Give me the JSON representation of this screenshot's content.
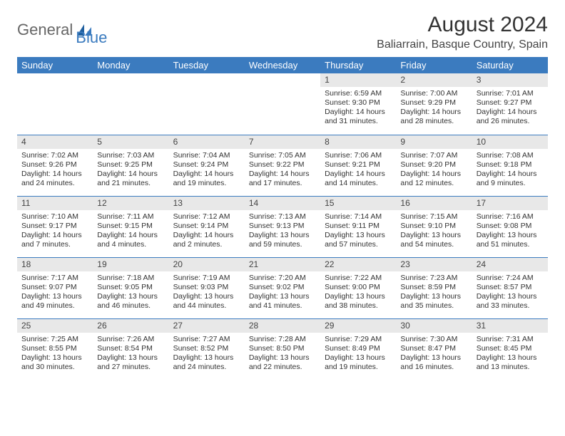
{
  "logo": {
    "part1": "General",
    "part2": "Blue"
  },
  "title": "August 2024",
  "location": "Baliarrain, Basque Country, Spain",
  "colors": {
    "accent": "#3b7bbf",
    "bg": "#ffffff",
    "text": "#333333",
    "daynum_bg": "#e8e8e8"
  },
  "weekdays": [
    "Sunday",
    "Monday",
    "Tuesday",
    "Wednesday",
    "Thursday",
    "Friday",
    "Saturday"
  ],
  "first_weekday_index": 4,
  "days": [
    {
      "n": 1,
      "sunrise": "6:59 AM",
      "sunset": "9:30 PM",
      "daylight": "14 hours and 31 minutes."
    },
    {
      "n": 2,
      "sunrise": "7:00 AM",
      "sunset": "9:29 PM",
      "daylight": "14 hours and 28 minutes."
    },
    {
      "n": 3,
      "sunrise": "7:01 AM",
      "sunset": "9:27 PM",
      "daylight": "14 hours and 26 minutes."
    },
    {
      "n": 4,
      "sunrise": "7:02 AM",
      "sunset": "9:26 PM",
      "daylight": "14 hours and 24 minutes."
    },
    {
      "n": 5,
      "sunrise": "7:03 AM",
      "sunset": "9:25 PM",
      "daylight": "14 hours and 21 minutes."
    },
    {
      "n": 6,
      "sunrise": "7:04 AM",
      "sunset": "9:24 PM",
      "daylight": "14 hours and 19 minutes."
    },
    {
      "n": 7,
      "sunrise": "7:05 AM",
      "sunset": "9:22 PM",
      "daylight": "14 hours and 17 minutes."
    },
    {
      "n": 8,
      "sunrise": "7:06 AM",
      "sunset": "9:21 PM",
      "daylight": "14 hours and 14 minutes."
    },
    {
      "n": 9,
      "sunrise": "7:07 AM",
      "sunset": "9:20 PM",
      "daylight": "14 hours and 12 minutes."
    },
    {
      "n": 10,
      "sunrise": "7:08 AM",
      "sunset": "9:18 PM",
      "daylight": "14 hours and 9 minutes."
    },
    {
      "n": 11,
      "sunrise": "7:10 AM",
      "sunset": "9:17 PM",
      "daylight": "14 hours and 7 minutes."
    },
    {
      "n": 12,
      "sunrise": "7:11 AM",
      "sunset": "9:15 PM",
      "daylight": "14 hours and 4 minutes."
    },
    {
      "n": 13,
      "sunrise": "7:12 AM",
      "sunset": "9:14 PM",
      "daylight": "14 hours and 2 minutes."
    },
    {
      "n": 14,
      "sunrise": "7:13 AM",
      "sunset": "9:13 PM",
      "daylight": "13 hours and 59 minutes."
    },
    {
      "n": 15,
      "sunrise": "7:14 AM",
      "sunset": "9:11 PM",
      "daylight": "13 hours and 57 minutes."
    },
    {
      "n": 16,
      "sunrise": "7:15 AM",
      "sunset": "9:10 PM",
      "daylight": "13 hours and 54 minutes."
    },
    {
      "n": 17,
      "sunrise": "7:16 AM",
      "sunset": "9:08 PM",
      "daylight": "13 hours and 51 minutes."
    },
    {
      "n": 18,
      "sunrise": "7:17 AM",
      "sunset": "9:07 PM",
      "daylight": "13 hours and 49 minutes."
    },
    {
      "n": 19,
      "sunrise": "7:18 AM",
      "sunset": "9:05 PM",
      "daylight": "13 hours and 46 minutes."
    },
    {
      "n": 20,
      "sunrise": "7:19 AM",
      "sunset": "9:03 PM",
      "daylight": "13 hours and 44 minutes."
    },
    {
      "n": 21,
      "sunrise": "7:20 AM",
      "sunset": "9:02 PM",
      "daylight": "13 hours and 41 minutes."
    },
    {
      "n": 22,
      "sunrise": "7:22 AM",
      "sunset": "9:00 PM",
      "daylight": "13 hours and 38 minutes."
    },
    {
      "n": 23,
      "sunrise": "7:23 AM",
      "sunset": "8:59 PM",
      "daylight": "13 hours and 35 minutes."
    },
    {
      "n": 24,
      "sunrise": "7:24 AM",
      "sunset": "8:57 PM",
      "daylight": "13 hours and 33 minutes."
    },
    {
      "n": 25,
      "sunrise": "7:25 AM",
      "sunset": "8:55 PM",
      "daylight": "13 hours and 30 minutes."
    },
    {
      "n": 26,
      "sunrise": "7:26 AM",
      "sunset": "8:54 PM",
      "daylight": "13 hours and 27 minutes."
    },
    {
      "n": 27,
      "sunrise": "7:27 AM",
      "sunset": "8:52 PM",
      "daylight": "13 hours and 24 minutes."
    },
    {
      "n": 28,
      "sunrise": "7:28 AM",
      "sunset": "8:50 PM",
      "daylight": "13 hours and 22 minutes."
    },
    {
      "n": 29,
      "sunrise": "7:29 AM",
      "sunset": "8:49 PM",
      "daylight": "13 hours and 19 minutes."
    },
    {
      "n": 30,
      "sunrise": "7:30 AM",
      "sunset": "8:47 PM",
      "daylight": "13 hours and 16 minutes."
    },
    {
      "n": 31,
      "sunrise": "7:31 AM",
      "sunset": "8:45 PM",
      "daylight": "13 hours and 13 minutes."
    }
  ],
  "labels": {
    "sunrise": "Sunrise:",
    "sunset": "Sunset:",
    "daylight": "Daylight:"
  }
}
